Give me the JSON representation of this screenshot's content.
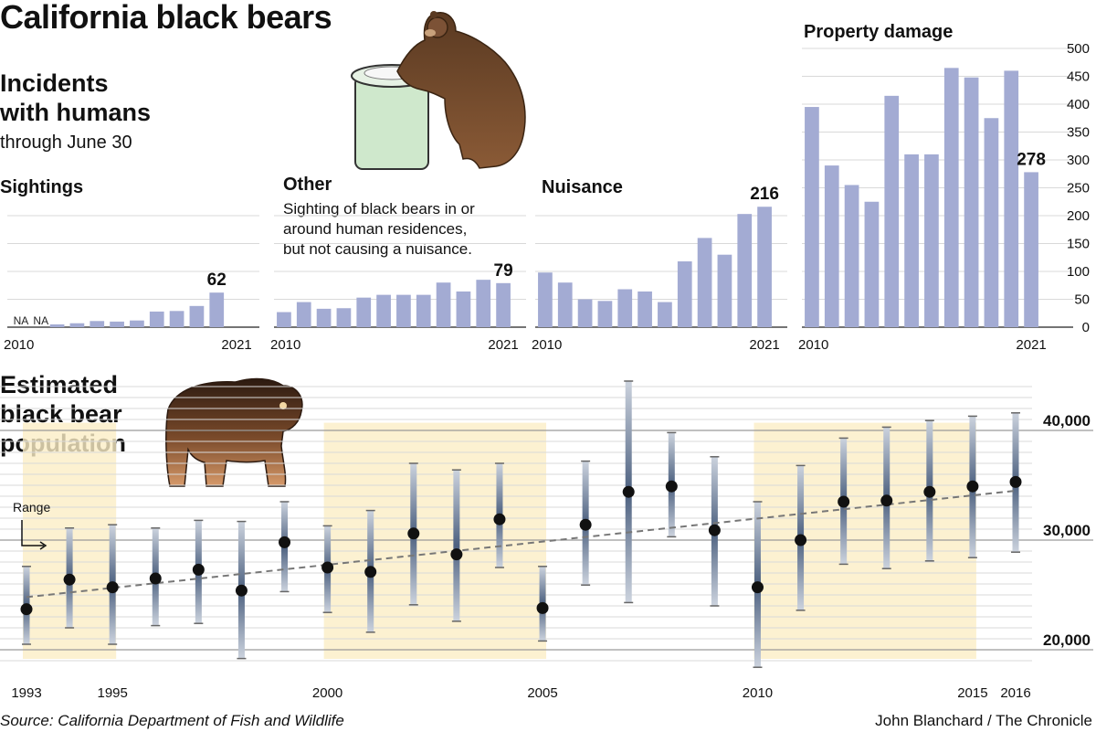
{
  "header": {
    "title": "California black bears",
    "incidents_heading_line1": "Incidents",
    "incidents_heading_line2": "with humans",
    "incidents_sub": "through June 30",
    "population_heading_line1": "Estimated",
    "population_heading_line2": "black bear",
    "population_heading_line3": "population"
  },
  "panels_text": {
    "other_note_line1": "Sighting of black bears in or",
    "other_note_line2": "around human residences,",
    "other_note_line3": "but not causing a nuisance."
  },
  "footer": {
    "source": "Source: California Department of Fish and Wildlife",
    "credit": "John Blanchard / The Chronicle"
  },
  "colors": {
    "bar": "#a3abd3",
    "grid": "#d9d9d9",
    "highlight": "#fbedc6",
    "range_dark": "#4d6180",
    "dot": "#111111",
    "trend": "#777777"
  },
  "chart_data": [
    {
      "type": "bar",
      "title": "Sightings",
      "categories": [
        2010,
        2011,
        2012,
        2013,
        2014,
        2015,
        2016,
        2017,
        2018,
        2019,
        2020,
        2021
      ],
      "values": [
        null,
        null,
        5,
        7,
        11,
        10,
        12,
        28,
        29,
        38,
        62,
        null
      ],
      "na_labels": [
        "NA",
        "NA"
      ],
      "highlight_label": "62",
      "tick_labels": [
        "2010",
        "2021"
      ],
      "ylim": [
        0,
        500
      ]
    },
    {
      "type": "bar",
      "title": "Other",
      "categories": [
        2010,
        2011,
        2012,
        2013,
        2014,
        2015,
        2016,
        2017,
        2018,
        2019,
        2020,
        2021
      ],
      "values": [
        27,
        45,
        33,
        34,
        53,
        58,
        58,
        58,
        80,
        64,
        85,
        79
      ],
      "highlight_label": "79",
      "tick_labels": [
        "2010",
        "2021"
      ],
      "ylim": [
        0,
        500
      ]
    },
    {
      "type": "bar",
      "title": "Nuisance",
      "categories": [
        2010,
        2011,
        2012,
        2013,
        2014,
        2015,
        2016,
        2017,
        2018,
        2019,
        2020,
        2021
      ],
      "values": [
        98,
        80,
        50,
        47,
        68,
        64,
        45,
        118,
        160,
        130,
        203,
        216
      ],
      "highlight_label": "216",
      "tick_labels": [
        "2010",
        "2021"
      ],
      "ylim": [
        0,
        500
      ]
    },
    {
      "type": "bar",
      "title": "Property damage",
      "categories": [
        2010,
        2011,
        2012,
        2013,
        2014,
        2015,
        2016,
        2017,
        2018,
        2019,
        2020,
        2021
      ],
      "values": [
        395,
        290,
        255,
        225,
        415,
        310,
        310,
        465,
        448,
        375,
        460,
        278
      ],
      "highlight_label": "278",
      "tick_labels": [
        "2010",
        "2021"
      ],
      "ylim": [
        0,
        500
      ],
      "y_ticks": [
        "500",
        "450",
        "400",
        "350",
        "300",
        "250",
        "200",
        "150",
        "100",
        "50",
        "0"
      ]
    },
    {
      "type": "scatter",
      "title": "Estimated black bear population",
      "x": [
        1993,
        1994,
        1995,
        1996,
        1997,
        1998,
        1999,
        2000,
        2001,
        2002,
        2003,
        2004,
        2005,
        2006,
        2007,
        2008,
        2009,
        2010,
        2011,
        2012,
        2013,
        2014,
        2015,
        2016
      ],
      "y": [
        23700,
        26400,
        25700,
        26500,
        27300,
        25400,
        29800,
        27500,
        27100,
        30600,
        28700,
        31900,
        23800,
        31400,
        34400,
        34900,
        30900,
        25700,
        30000,
        33500,
        33600,
        34400,
        34900,
        35300
      ],
      "range_low": [
        20500,
        22000,
        20500,
        22200,
        22400,
        19200,
        25300,
        23400,
        21600,
        24100,
        22600,
        27500,
        20800,
        25900,
        24300,
        30300,
        24000,
        18400,
        23600,
        27800,
        27400,
        28100,
        28400,
        28900
      ],
      "range_high": [
        27600,
        31100,
        31400,
        31100,
        31800,
        31700,
        33500,
        31300,
        32700,
        37000,
        36400,
        37000,
        27600,
        37200,
        44500,
        39800,
        37600,
        33500,
        36800,
        39300,
        40300,
        40900,
        41300,
        41600
      ],
      "trend": {
        "start": [
          1993,
          24800
        ],
        "end": [
          2016,
          34500
        ]
      },
      "highlight_periods": [
        [
          1993,
          1995
        ],
        [
          2000,
          2005
        ],
        [
          2010,
          2015
        ]
      ],
      "ylabels": [
        "40,000",
        "30,000",
        "20,000"
      ],
      "y_ticks": [
        40000,
        30000,
        20000
      ],
      "ylim": [
        18000,
        45000
      ],
      "xticks": [
        "1993",
        "1995",
        "2000",
        "2005",
        "2010",
        "2015",
        "2016"
      ],
      "range_annotation": "Range"
    }
  ]
}
